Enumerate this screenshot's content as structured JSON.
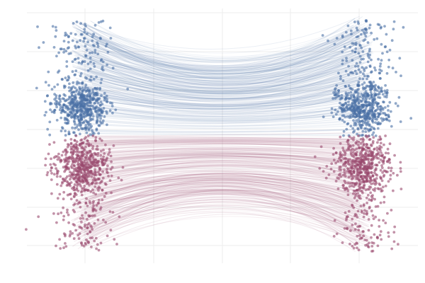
{
  "chart_data": {
    "type": "scatter",
    "title": "",
    "xlabel": "",
    "ylabel": "",
    "grid": true,
    "legend": "none",
    "xlim": [
      -1.25,
      1.25
    ],
    "ylim": [
      -1.6,
      1.6
    ],
    "x_columns": [
      -0.9,
      0.9
    ],
    "split_y": 0,
    "series": [
      {
        "id": "upper",
        "color": "#4a6fa5",
        "points_per_column": 650,
        "y_range": [
          0,
          1.45
        ],
        "y_mode": [
          0.25,
          0.5
        ]
      },
      {
        "id": "lower",
        "color": "#9a4a6e",
        "points_per_column": 650,
        "y_range": [
          -1.45,
          0
        ],
        "y_mode": [
          -0.55,
          -0.2
        ]
      }
    ],
    "connecting_curves": {
      "count_per_series": 260,
      "style": "arcs bowing toward the split line"
    }
  }
}
